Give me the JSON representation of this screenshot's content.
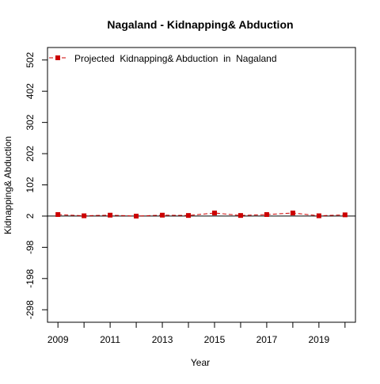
{
  "chart_data": {
    "type": "line",
    "title": "Nagaland  -  Kidnapping& Abduction",
    "xlabel": "Year",
    "ylabel": "Kidnapping& Abduction",
    "x": [
      2009,
      2010,
      2011,
      2012,
      2013,
      2014,
      2015,
      2016,
      2017,
      2018,
      2019,
      2020
    ],
    "series": [
      {
        "name": "Projected  Kidnapping& Abduction  in  Nagaland",
        "values": [
          7,
          3,
          5,
          2,
          5,
          4,
          12,
          4,
          7,
          12,
          3,
          6
        ],
        "color": "#cc0000",
        "line_style": "dashed",
        "marker": "square"
      }
    ],
    "x_ticks": [
      2009,
      2011,
      2013,
      2015,
      2017,
      2019
    ],
    "x_tick_labels": [
      "2009",
      "2011",
      "2013",
      "2015",
      "2017",
      "2019"
    ],
    "y_ticks": [
      -298,
      -198,
      -98,
      2,
      102,
      202,
      302,
      402,
      502
    ],
    "y_tick_labels": [
      "-298",
      "-198",
      "-98",
      "2",
      "102",
      "202",
      "302",
      "402",
      "502"
    ],
    "xlim": [
      2008.6,
      2020.4
    ],
    "ylim": [
      -338,
      542
    ],
    "reference_line": 2,
    "legend_position": "top-left",
    "grid": false
  }
}
